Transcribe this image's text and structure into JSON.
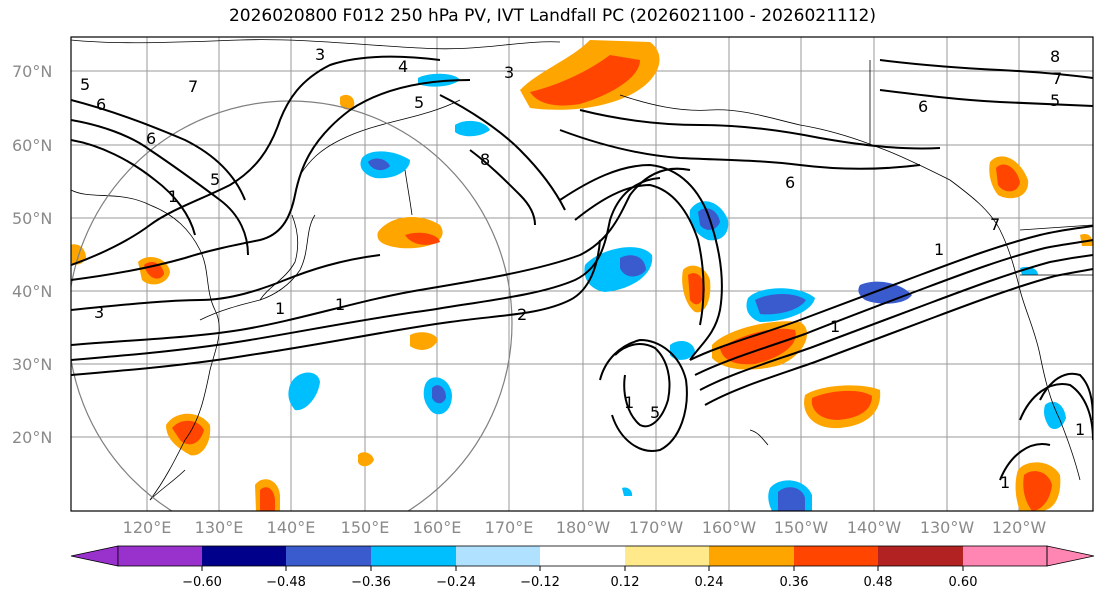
{
  "title": "2026020800 F012 250 hPa PV, IVT Landfall PC (2026021100 - 2026021112)",
  "map": {
    "lat_labels": [
      "70°N",
      "60°N",
      "50°N",
      "40°N",
      "30°N",
      "20°N"
    ],
    "lon_labels": [
      "120°E",
      "130°E",
      "140°E",
      "150°E",
      "160°E",
      "170°E",
      "180°W",
      "170°W",
      "160°W",
      "150°W",
      "140°W",
      "130°W",
      "120°W"
    ],
    "pv_contour_labels": [
      "5",
      "3",
      "4",
      "3",
      "8",
      "5",
      "6",
      "7",
      "5",
      "6",
      "8",
      "5",
      "6",
      "7",
      "1",
      "3",
      "1",
      "1",
      "2",
      "1",
      "6",
      "1",
      "7",
      "5",
      "1",
      "1",
      "1"
    ]
  },
  "colorbar": {
    "ticks": [
      "−0.60",
      "−0.48",
      "−0.36",
      "−0.24",
      "−0.12",
      "0.12",
      "0.24",
      "0.36",
      "0.48",
      "0.60"
    ],
    "colors": [
      "#9932cc",
      "#00008b",
      "#3a5bcd",
      "#00bfff",
      "#b0e2ff",
      "#ffffff",
      "#ffe98a",
      "#ffa500",
      "#ff4500",
      "#b22222",
      "#ff85b3"
    ]
  }
}
